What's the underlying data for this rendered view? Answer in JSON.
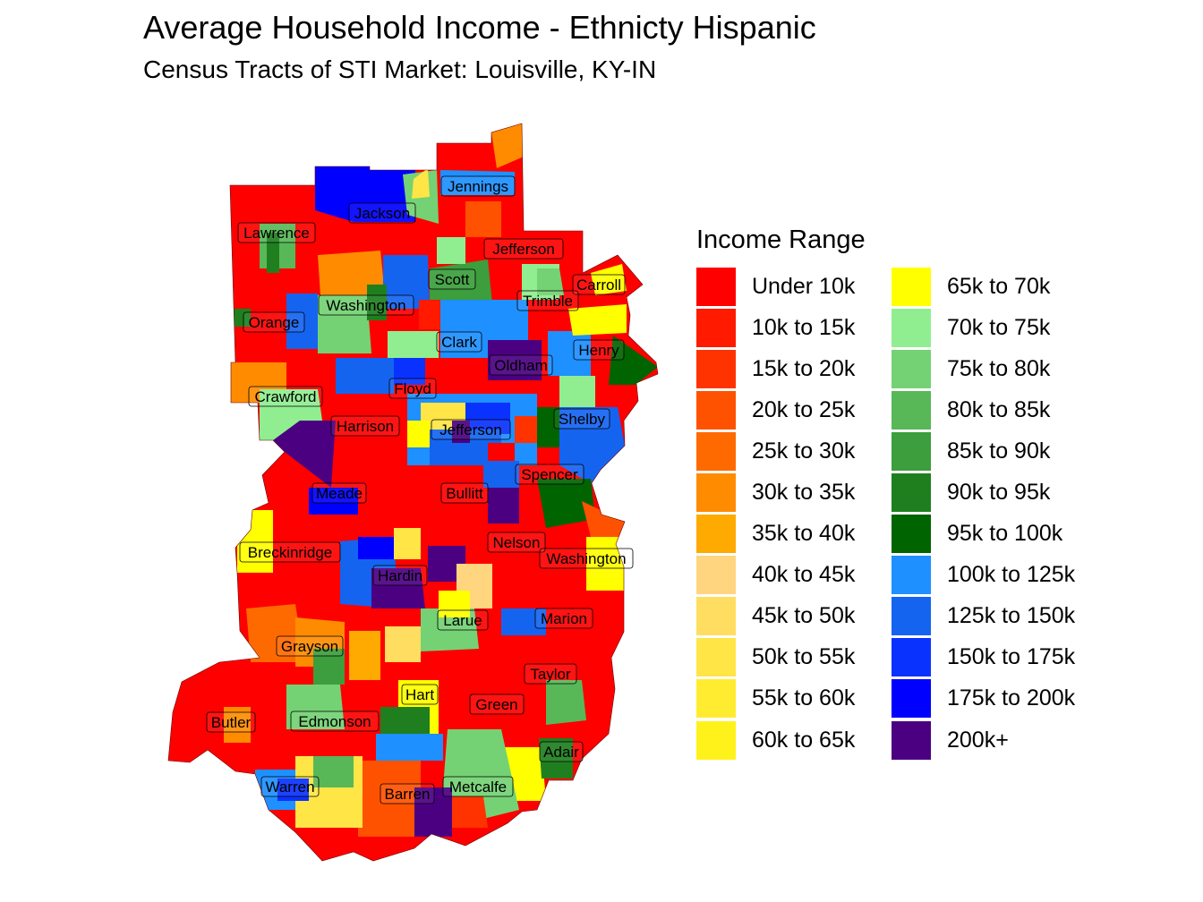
{
  "title": "Average Household Income - Ethnicty Hispanic",
  "subtitle": "Census Tracts of STI Market: Louisville, KY-IN",
  "legend": {
    "title": "Income Range",
    "items": [
      {
        "label": "Under 10k",
        "color": "#FF0000"
      },
      {
        "label": "10k to 15k",
        "color": "#FF1A00"
      },
      {
        "label": "15k to 20k",
        "color": "#FF3300"
      },
      {
        "label": "20k to 25k",
        "color": "#FF5200"
      },
      {
        "label": "25k to 30k",
        "color": "#FF6A00"
      },
      {
        "label": "30k to 35k",
        "color": "#FF8C00"
      },
      {
        "label": "35k to 40k",
        "color": "#FFAA00"
      },
      {
        "label": "40k to 45k",
        "color": "#FFD580"
      },
      {
        "label": "45k to 50k",
        "color": "#FFDD60"
      },
      {
        "label": "50k to 55k",
        "color": "#FFE545"
      },
      {
        "label": "55k to 60k",
        "color": "#FFEC30"
      },
      {
        "label": "60k to 65k",
        "color": "#FFF21A"
      },
      {
        "label": "65k to 70k",
        "color": "#FFFF00"
      },
      {
        "label": "70k to 75k",
        "color": "#90EE90"
      },
      {
        "label": "75k to 80k",
        "color": "#74D274"
      },
      {
        "label": "80k to 85k",
        "color": "#58B858"
      },
      {
        "label": "85k to 90k",
        "color": "#3C9E3C"
      },
      {
        "label": "90k to 95k",
        "color": "#1F7F1F"
      },
      {
        "label": "95k to 100k",
        "color": "#006400"
      },
      {
        "label": "100k to 125k",
        "color": "#1E90FF"
      },
      {
        "label": "125k to 150k",
        "color": "#1464F0"
      },
      {
        "label": "150k to 175k",
        "color": "#0A32FF"
      },
      {
        "label": "175k to 200k",
        "color": "#0000FF"
      },
      {
        "label": "200k+",
        "color": "#4B0082"
      }
    ]
  },
  "counties": [
    {
      "name": "Jennings"
    },
    {
      "name": "Jackson"
    },
    {
      "name": "Lawrence"
    },
    {
      "name": "Jefferson"
    },
    {
      "name": "Scott"
    },
    {
      "name": "Carroll"
    },
    {
      "name": "Washington"
    },
    {
      "name": "Trimble"
    },
    {
      "name": "Orange"
    },
    {
      "name": "Clark"
    },
    {
      "name": "Henry"
    },
    {
      "name": "Oldham"
    },
    {
      "name": "Crawford"
    },
    {
      "name": "Floyd"
    },
    {
      "name": "Shelby"
    },
    {
      "name": "Harrison"
    },
    {
      "name": "Jefferson"
    },
    {
      "name": "Spencer"
    },
    {
      "name": "Meade"
    },
    {
      "name": "Bullitt"
    },
    {
      "name": "Nelson"
    },
    {
      "name": "Breckinridge"
    },
    {
      "name": "Washington"
    },
    {
      "name": "Hardin"
    },
    {
      "name": "Larue"
    },
    {
      "name": "Marion"
    },
    {
      "name": "Grayson"
    },
    {
      "name": "Taylor"
    },
    {
      "name": "Hart"
    },
    {
      "name": "Green"
    },
    {
      "name": "Butler"
    },
    {
      "name": "Edmonson"
    },
    {
      "name": "Adair"
    },
    {
      "name": "Warren"
    },
    {
      "name": "Metcalfe"
    },
    {
      "name": "Barren"
    }
  ]
}
